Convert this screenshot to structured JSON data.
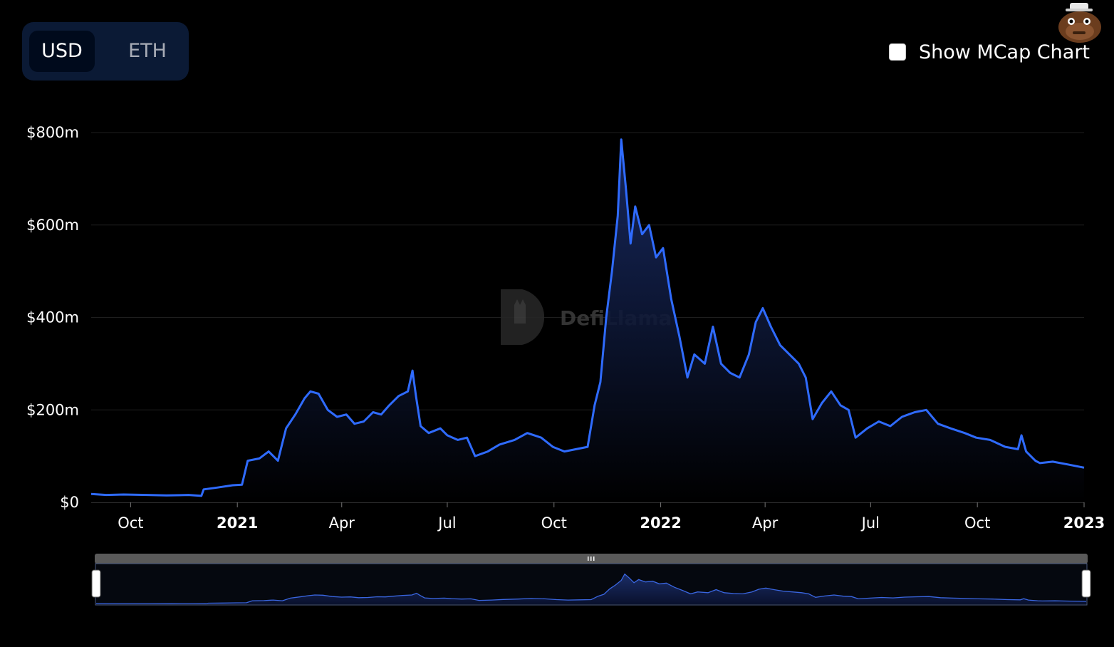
{
  "toggle": {
    "usd_label": "USD",
    "eth_label": "ETH",
    "selected": "USD"
  },
  "mcap": {
    "label": "Show MCap Chart",
    "checked": false
  },
  "watermark": "DefiLlama",
  "colors": {
    "line": "#2f6bff",
    "background": "#000000",
    "toggle_bg": "#0b1a35"
  },
  "chart_data": {
    "type": "area",
    "currency": "USD",
    "ylim": [
      0,
      800
    ],
    "y_unit": "$m",
    "y_ticks": [
      "$0",
      "$200m",
      "$400m",
      "$600m",
      "$800m"
    ],
    "y_tick_values": [
      0,
      200,
      400,
      600,
      800
    ],
    "x_range": [
      "2020-08-28",
      "2023-01-01"
    ],
    "x_ticks": [
      {
        "label": "Oct",
        "date": "2020-10-01",
        "bold": false
      },
      {
        "label": "2021",
        "date": "2021-01-01",
        "bold": true
      },
      {
        "label": "Apr",
        "date": "2021-04-01",
        "bold": false
      },
      {
        "label": "Jul",
        "date": "2021-07-01",
        "bold": false
      },
      {
        "label": "Oct",
        "date": "2021-10-01",
        "bold": false
      },
      {
        "label": "2022",
        "date": "2022-01-01",
        "bold": true
      },
      {
        "label": "Apr",
        "date": "2022-04-01",
        "bold": false
      },
      {
        "label": "Jul",
        "date": "2022-07-01",
        "bold": false
      },
      {
        "label": "Oct",
        "date": "2022-10-01",
        "bold": false
      },
      {
        "label": "2023",
        "date": "2023-01-01",
        "bold": true
      }
    ],
    "grid": true,
    "series": [
      {
        "points": [
          [
            "2020-08-28",
            18
          ],
          [
            "2020-09-10",
            16
          ],
          [
            "2020-09-25",
            17
          ],
          [
            "2020-10-15",
            16
          ],
          [
            "2020-11-01",
            15
          ],
          [
            "2020-11-20",
            16
          ],
          [
            "2020-12-01",
            14
          ],
          [
            "2020-12-03",
            28
          ],
          [
            "2020-12-15",
            32
          ],
          [
            "2020-12-28",
            37
          ],
          [
            "2021-01-05",
            38
          ],
          [
            "2021-01-10",
            90
          ],
          [
            "2021-01-20",
            95
          ],
          [
            "2021-01-28",
            110
          ],
          [
            "2021-02-05",
            90
          ],
          [
            "2021-02-12",
            160
          ],
          [
            "2021-02-20",
            190
          ],
          [
            "2021-02-28",
            225
          ],
          [
            "2021-03-05",
            240
          ],
          [
            "2021-03-12",
            235
          ],
          [
            "2021-03-20",
            200
          ],
          [
            "2021-03-28",
            185
          ],
          [
            "2021-04-05",
            190
          ],
          [
            "2021-04-12",
            170
          ],
          [
            "2021-04-20",
            175
          ],
          [
            "2021-04-28",
            195
          ],
          [
            "2021-05-05",
            190
          ],
          [
            "2021-05-12",
            210
          ],
          [
            "2021-05-20",
            230
          ],
          [
            "2021-05-28",
            240
          ],
          [
            "2021-06-01",
            285
          ],
          [
            "2021-06-04",
            230
          ],
          [
            "2021-06-08",
            165
          ],
          [
            "2021-06-15",
            150
          ],
          [
            "2021-06-25",
            160
          ],
          [
            "2021-07-01",
            145
          ],
          [
            "2021-07-10",
            135
          ],
          [
            "2021-07-18",
            140
          ],
          [
            "2021-07-25",
            100
          ],
          [
            "2021-08-05",
            110
          ],
          [
            "2021-08-15",
            125
          ],
          [
            "2021-08-28",
            135
          ],
          [
            "2021-09-08",
            150
          ],
          [
            "2021-09-20",
            140
          ],
          [
            "2021-09-30",
            120
          ],
          [
            "2021-10-10",
            110
          ],
          [
            "2021-10-20",
            115
          ],
          [
            "2021-10-30",
            120
          ],
          [
            "2021-11-05",
            210
          ],
          [
            "2021-11-10",
            260
          ],
          [
            "2021-11-15",
            400
          ],
          [
            "2021-11-20",
            500
          ],
          [
            "2021-11-25",
            620
          ],
          [
            "2021-11-28",
            785
          ],
          [
            "2021-12-02",
            680
          ],
          [
            "2021-12-06",
            560
          ],
          [
            "2021-12-10",
            640
          ],
          [
            "2021-12-16",
            580
          ],
          [
            "2021-12-22",
            600
          ],
          [
            "2021-12-28",
            530
          ],
          [
            "2022-01-03",
            550
          ],
          [
            "2022-01-10",
            440
          ],
          [
            "2022-01-17",
            360
          ],
          [
            "2022-01-24",
            270
          ],
          [
            "2022-01-30",
            320
          ],
          [
            "2022-02-08",
            300
          ],
          [
            "2022-02-15",
            380
          ],
          [
            "2022-02-22",
            300
          ],
          [
            "2022-03-02",
            280
          ],
          [
            "2022-03-10",
            270
          ],
          [
            "2022-03-18",
            320
          ],
          [
            "2022-03-24",
            390
          ],
          [
            "2022-03-30",
            420
          ],
          [
            "2022-04-06",
            380
          ],
          [
            "2022-04-14",
            340
          ],
          [
            "2022-04-22",
            320
          ],
          [
            "2022-04-30",
            300
          ],
          [
            "2022-05-06",
            270
          ],
          [
            "2022-05-12",
            180
          ],
          [
            "2022-05-20",
            215
          ],
          [
            "2022-05-28",
            240
          ],
          [
            "2022-06-05",
            210
          ],
          [
            "2022-06-12",
            200
          ],
          [
            "2022-06-18",
            140
          ],
          [
            "2022-06-28",
            160
          ],
          [
            "2022-07-08",
            175
          ],
          [
            "2022-07-18",
            165
          ],
          [
            "2022-07-28",
            185
          ],
          [
            "2022-08-08",
            195
          ],
          [
            "2022-08-18",
            200
          ],
          [
            "2022-08-28",
            170
          ],
          [
            "2022-09-08",
            160
          ],
          [
            "2022-09-20",
            150
          ],
          [
            "2022-09-30",
            140
          ],
          [
            "2022-10-12",
            135
          ],
          [
            "2022-10-25",
            120
          ],
          [
            "2022-11-05",
            115
          ],
          [
            "2022-11-08",
            145
          ],
          [
            "2022-11-12",
            110
          ],
          [
            "2022-11-20",
            90
          ],
          [
            "2022-11-24",
            85
          ],
          [
            "2022-12-05",
            88
          ],
          [
            "2022-12-18",
            82
          ],
          [
            "2023-01-01",
            75
          ]
        ]
      }
    ]
  }
}
